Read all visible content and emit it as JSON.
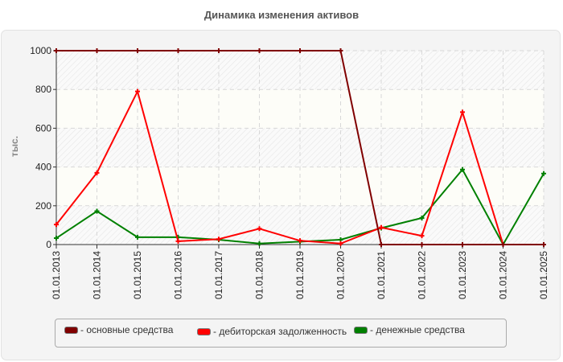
{
  "title": "Динамика изменения активов",
  "chart_data": {
    "type": "line",
    "title": "Динамика изменения активов",
    "xlabel": "",
    "ylabel": "тыс.",
    "ylim": [
      0,
      1000
    ],
    "yticks": [
      0,
      200,
      400,
      600,
      800,
      1000
    ],
    "grid": true,
    "legend_position": "bottom",
    "categories": [
      "01.01.2013",
      "01.01.2014",
      "01.01.2015",
      "01.01.2016",
      "01.01.2017",
      "01.01.2018",
      "01.01.2019",
      "01.01.2020",
      "01.01.2021",
      "01.01.2022",
      "01.01.2023",
      "01.01.2024",
      "01.01.2025"
    ],
    "series": [
      {
        "name": "основные средства",
        "color": "#800000",
        "values": [
          1000,
          1000,
          1000,
          1000,
          1000,
          1000,
          1000,
          1000,
          0,
          0,
          0,
          0,
          0
        ]
      },
      {
        "name": "дебиторская задолженность",
        "color": "#ff0000",
        "values": [
          103,
          370,
          790,
          17,
          28,
          82,
          20,
          5,
          88,
          45,
          683,
          0,
          0
        ]
      },
      {
        "name": "денежные средства",
        "color": "#008000",
        "values": [
          33,
          172,
          38,
          38,
          25,
          5,
          15,
          25,
          85,
          137,
          387,
          0,
          366
        ]
      }
    ]
  },
  "legend": {
    "items": [
      {
        "label": "- основные средства",
        "color": "#800000"
      },
      {
        "label": "- дебиторская задолженность",
        "color": "#ff0000"
      },
      {
        "label": "- денежные средства",
        "color": "#008000"
      }
    ]
  }
}
